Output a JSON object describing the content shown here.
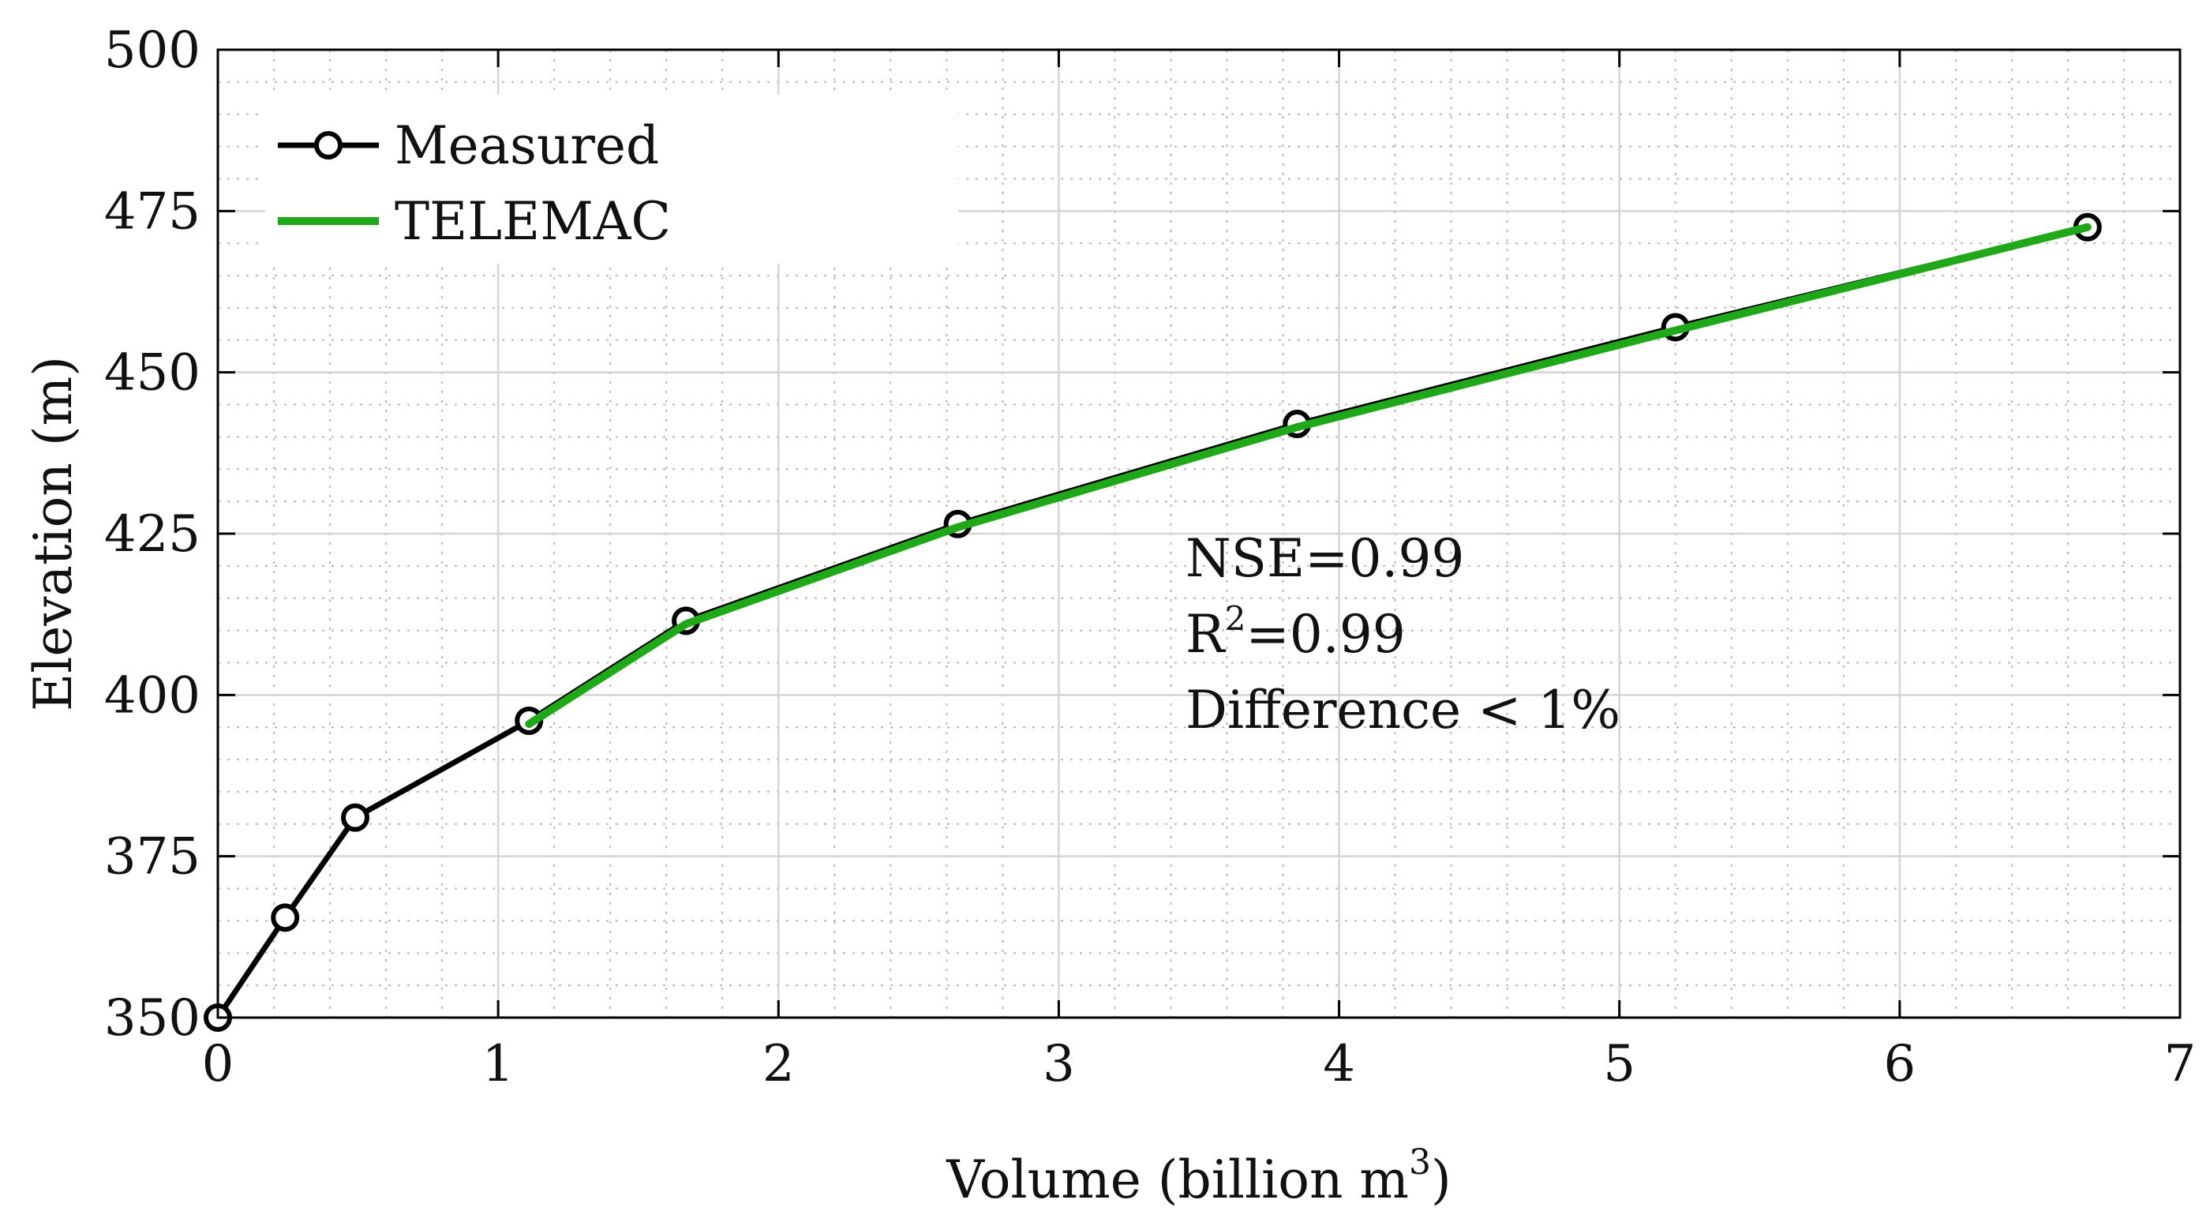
{
  "chart_data": {
    "type": "line",
    "xlabel": "Volume (billion m",
    "xlabel_sup": "3",
    "xlabel_end": ")",
    "ylabel": "Elevation (m)",
    "xlim": [
      0,
      7
    ],
    "ylim": [
      350,
      500
    ],
    "xticks": [
      0,
      1,
      2,
      3,
      4,
      5,
      6,
      7
    ],
    "yticks": [
      350,
      375,
      400,
      425,
      450,
      475,
      500
    ],
    "xminor_step": 0.2,
    "yminor_step": 5,
    "grid": true,
    "legend_position": "top-left",
    "series": [
      {
        "name": "Measured",
        "color": "#000000",
        "marker": "circle",
        "x": [
          0,
          0.24,
          0.49,
          1.11,
          1.67,
          2.64,
          3.85,
          5.2,
          6.67
        ],
        "y": [
          350,
          365.5,
          381,
          396,
          411.5,
          426.5,
          442,
          457,
          472.5
        ]
      },
      {
        "name": "TELEMAC",
        "color": "#1fa818",
        "marker": "none",
        "x": [
          1.11,
          1.67,
          2.64,
          3.85,
          5.2,
          6.67
        ],
        "y": [
          395.5,
          411,
          426,
          441.5,
          456.5,
          472.5
        ]
      }
    ],
    "annotations": {
      "nse": "NSE=0.99",
      "r2_base": "R",
      "r2_sup": "2",
      "r2_value": "=0.99",
      "difference": "Difference < 1%"
    }
  }
}
